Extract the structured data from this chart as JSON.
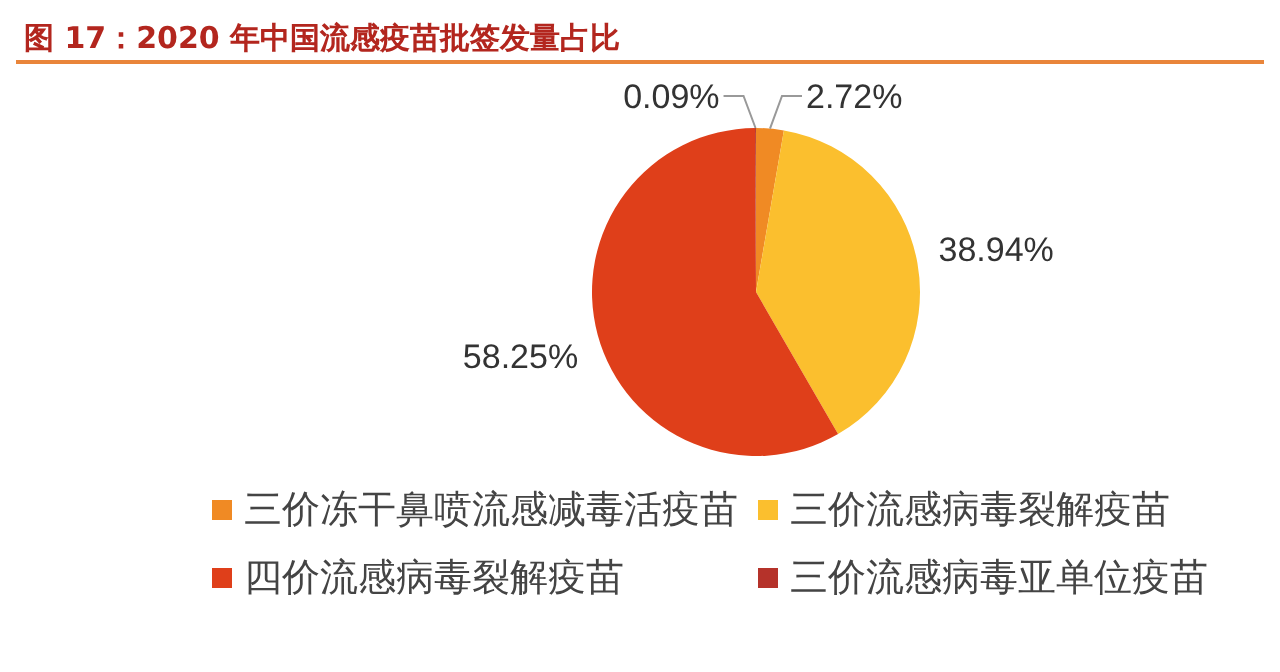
{
  "chart_data": {
    "type": "pie",
    "title": "图 17：2020 年中国流感疫苗批签发量占比",
    "categories": [
      "三价冻干鼻喷流感减毒活疫苗",
      "三价流感病毒裂解疫苗",
      "四价流感病毒裂解疫苗",
      "三价流感病毒亚单位疫苗"
    ],
    "values": [
      2.72,
      38.94,
      58.25,
      0.09
    ],
    "colors": [
      "#f08a24",
      "#fbbf2e",
      "#df3f1a",
      "#b5322a"
    ],
    "value_labels": [
      "2.72%",
      "38.94%",
      "58.25%",
      "0.09%"
    ],
    "legend": "bottom"
  }
}
